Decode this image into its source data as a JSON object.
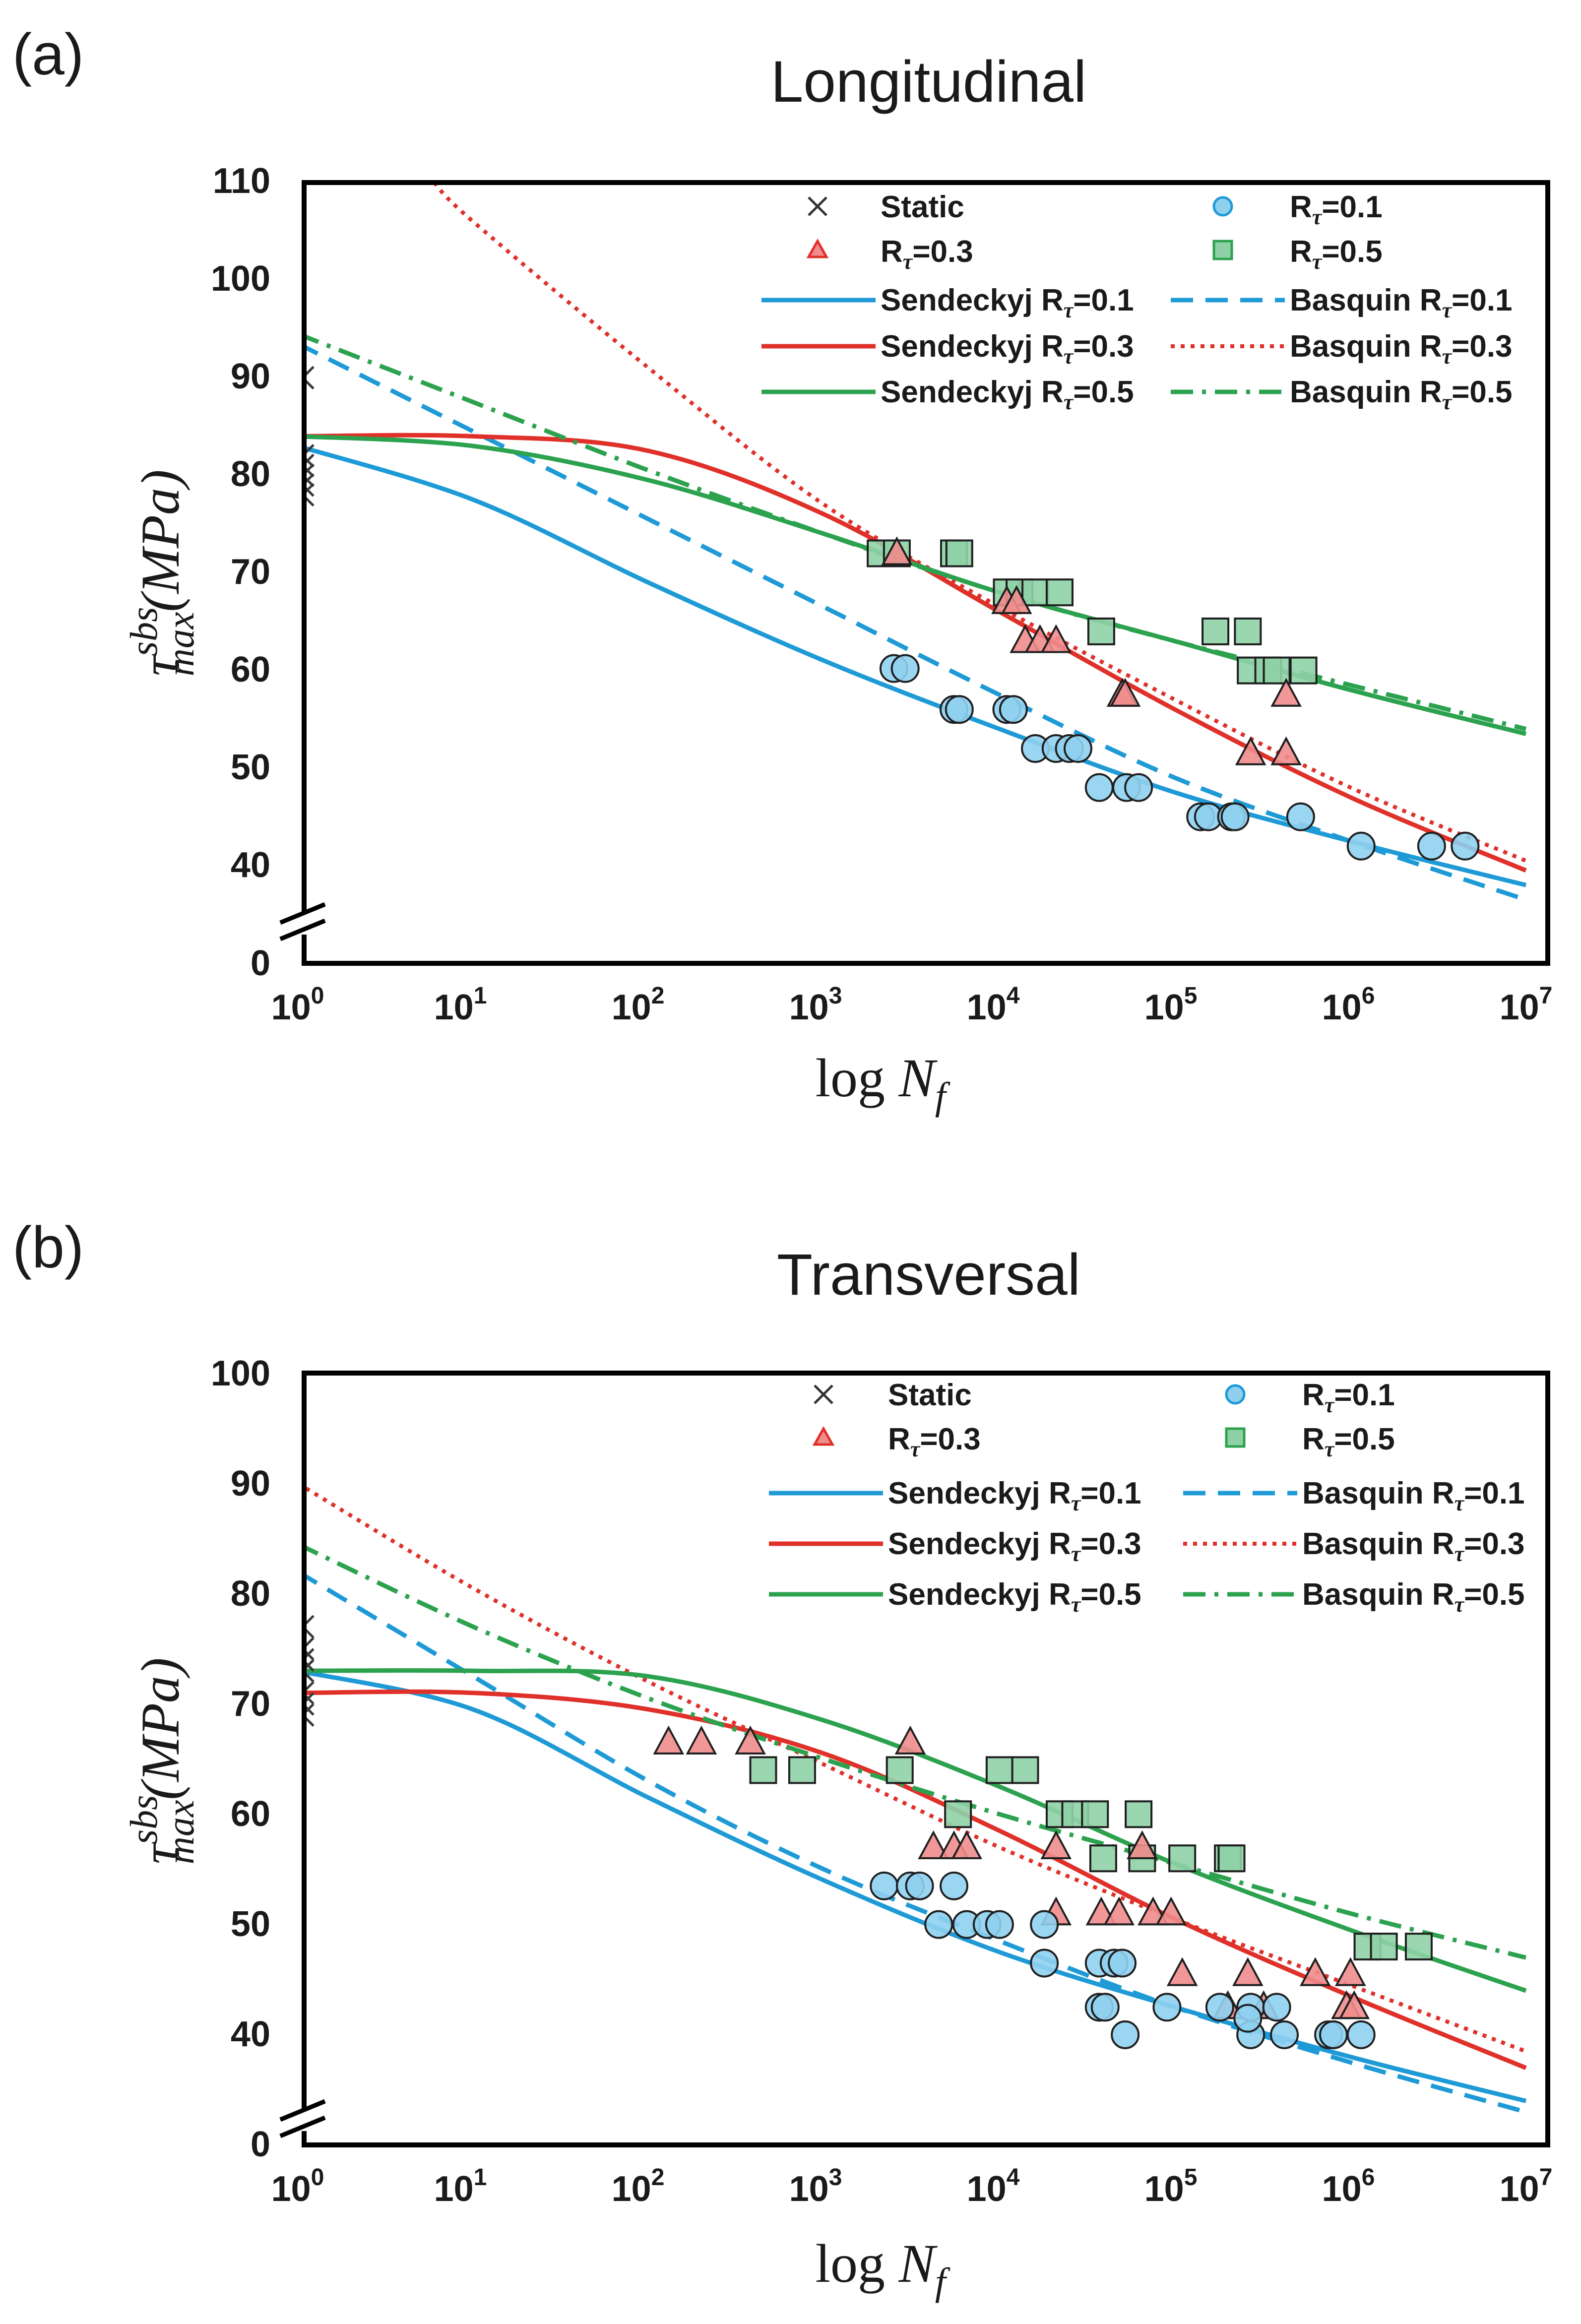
{
  "colors": {
    "r01": "#1e9ad6",
    "r01_fill": "#8fd0ef",
    "r03": "#e0302a",
    "r03_fill": "#f08c8c",
    "r05": "#2ca24f",
    "r05_fill": "#8fd1a6",
    "static": "#3a3a3a",
    "frame": "#000000"
  },
  "chart_data": [
    {
      "panel_label": "(a)",
      "title": "Longitudinal",
      "type": "scatter",
      "xscale": "log",
      "xlim": [
        1,
        10000000
      ],
      "ylim": [
        0,
        110
      ],
      "axis_break": "between 0 and 35",
      "xlabel": {
        "main": "log ",
        "var": "N",
        "sub": "f"
      },
      "ylabel": {
        "main": "τ",
        "sup": "sbs",
        "sub": "max",
        "unit": "(MPa)"
      },
      "xticks": [
        {
          "v": 1,
          "base": "10",
          "exp": "0"
        },
        {
          "v": 10,
          "base": "10",
          "exp": "1"
        },
        {
          "v": 100,
          "base": "10",
          "exp": "2"
        },
        {
          "v": 1000,
          "base": "10",
          "exp": "3"
        },
        {
          "v": 10000,
          "base": "10",
          "exp": "4"
        },
        {
          "v": 100000,
          "base": "10",
          "exp": "5"
        },
        {
          "v": 1000000,
          "base": "10",
          "exp": "6"
        },
        {
          "v": 10000000,
          "base": "10",
          "exp": "7"
        }
      ],
      "yticks": [
        "0",
        "40",
        "50",
        "60",
        "70",
        "80",
        "90",
        "100",
        "110"
      ],
      "legend": {
        "static": "Static",
        "r01": {
          "pre": "R",
          "sub": "τ",
          "post": "=0.1"
        },
        "r03": {
          "pre": "R",
          "sub": "τ",
          "post": "=0.3"
        },
        "r05": {
          "pre": "R",
          "sub": "τ",
          "post": "=0.5"
        },
        "sen01": {
          "pre": "Sendeckyj R",
          "sub": "τ",
          "post": "=0.1"
        },
        "bas01": {
          "pre": "Basquin R",
          "sub": "τ",
          "post": "=0.1"
        },
        "sen03": {
          "pre": "Sendeckyj R",
          "sub": "τ",
          "post": "=0.3"
        },
        "bas03": {
          "pre": "Basquin R",
          "sub": "τ",
          "post": "=0.3"
        },
        "sen05": {
          "pre": "Sendeckyj R",
          "sub": "τ",
          "post": "=0.5"
        },
        "bas05": {
          "pre": "Basquin R",
          "sub": "τ",
          "post": "=0.5"
        }
      },
      "static_points": [
        90,
        82,
        81,
        80,
        80,
        79,
        78
      ],
      "series_points": {
        "r01": [
          [
            2500,
            60.2
          ],
          [
            2900,
            60.2
          ],
          [
            5500,
            56
          ],
          [
            5900,
            56
          ],
          [
            11000,
            56
          ],
          [
            12000,
            56
          ],
          [
            16000,
            52
          ],
          [
            21000,
            52
          ],
          [
            25000,
            52
          ],
          [
            28000,
            52
          ],
          [
            37000,
            48
          ],
          [
            53000,
            48
          ],
          [
            62000,
            48
          ],
          [
            140000,
            45
          ],
          [
            155000,
            45
          ],
          [
            210000,
            45
          ],
          [
            220000,
            45
          ],
          [
            520000,
            45
          ],
          [
            1150000,
            42
          ],
          [
            2900000,
            42
          ],
          [
            4500000,
            42
          ]
        ],
        "r03": [
          [
            2600,
            72
          ],
          [
            11000,
            67
          ],
          [
            12500,
            67
          ],
          [
            14000,
            63
          ],
          [
            17000,
            63
          ],
          [
            21000,
            63
          ],
          [
            50000,
            57.5
          ],
          [
            52000,
            57.5
          ],
          [
            270000,
            51.5
          ],
          [
            430000,
            51.5
          ],
          [
            430000,
            57.5
          ]
        ],
        "r05": [
          [
            2100,
            72
          ],
          [
            2600,
            72
          ],
          [
            5500,
            72
          ],
          [
            5900,
            72
          ],
          [
            11000,
            68
          ],
          [
            13000,
            68
          ],
          [
            16000,
            68
          ],
          [
            22000,
            68
          ],
          [
            38000,
            64
          ],
          [
            170000,
            64
          ],
          [
            260000,
            64
          ],
          [
            270000,
            60
          ],
          [
            340000,
            60
          ],
          [
            380000,
            60
          ],
          [
            540000,
            60
          ]
        ]
      },
      "curves": {
        "sen01": [
          [
            1,
            83
          ],
          [
            10,
            77.5
          ],
          [
            100,
            69
          ],
          [
            1000,
            61
          ],
          [
            10000,
            54
          ],
          [
            100000,
            47.5
          ],
          [
            1000000,
            42.5
          ],
          [
            10000000,
            38
          ]
        ],
        "bas01": [
          [
            1,
            93.5
          ],
          [
            10,
            84.5
          ],
          [
            100,
            75.5
          ],
          [
            1000,
            66.5
          ],
          [
            10000,
            57.5
          ],
          [
            100000,
            49
          ],
          [
            1000000,
            42.5
          ],
          [
            10000000,
            36.5
          ]
        ],
        "sen03": [
          [
            1,
            84
          ],
          [
            10,
            84
          ],
          [
            100,
            82.5
          ],
          [
            1000,
            76
          ],
          [
            10000,
            66
          ],
          [
            100000,
            56
          ],
          [
            1000000,
            47
          ],
          [
            10000000,
            39.5
          ]
        ],
        "bas03": [
          [
            6,
            110
          ],
          [
            10,
            106
          ],
          [
            100,
            91
          ],
          [
            1000,
            77
          ],
          [
            10000,
            66.5
          ],
          [
            100000,
            57
          ],
          [
            1000000,
            48
          ],
          [
            10000000,
            40.5
          ]
        ],
        "sen05": [
          [
            1,
            84
          ],
          [
            10,
            83
          ],
          [
            100,
            79.5
          ],
          [
            1000,
            74
          ],
          [
            10000,
            68
          ],
          [
            100000,
            63
          ],
          [
            1000000,
            58
          ],
          [
            10000000,
            53.5
          ]
        ],
        "bas05": [
          [
            1,
            94.5
          ],
          [
            10,
            87.5
          ],
          [
            100,
            80.5
          ],
          [
            1000,
            74
          ],
          [
            10000,
            68
          ],
          [
            100000,
            63
          ],
          [
            1000000,
            58.5
          ],
          [
            10000000,
            54
          ]
        ]
      }
    },
    {
      "panel_label": "(b)",
      "title": "Transversal",
      "type": "scatter",
      "xscale": "log",
      "xlim": [
        1,
        10000000
      ],
      "ylim": [
        0,
        100
      ],
      "axis_break": "between 0 and 35",
      "xlabel": {
        "main": "log ",
        "var": "N",
        "sub": "f"
      },
      "ylabel": {
        "main": "τ",
        "sup": "sbs",
        "sub": "max",
        "unit": "(MPa)"
      },
      "xticks": [
        {
          "v": 1,
          "base": "10",
          "exp": "0"
        },
        {
          "v": 10,
          "base": "10",
          "exp": "1"
        },
        {
          "v": 100,
          "base": "10",
          "exp": "2"
        },
        {
          "v": 1000,
          "base": "10",
          "exp": "3"
        },
        {
          "v": 10000,
          "base": "10",
          "exp": "4"
        },
        {
          "v": 100000,
          "base": "10",
          "exp": "5"
        },
        {
          "v": 1000000,
          "base": "10",
          "exp": "6"
        },
        {
          "v": 10000000,
          "base": "10",
          "exp": "7"
        }
      ],
      "yticks": [
        "0",
        "40",
        "50",
        "60",
        "70",
        "80",
        "90",
        "100"
      ],
      "legend": {
        "static": "Static",
        "r01": {
          "pre": "R",
          "sub": "τ",
          "post": "=0.1"
        },
        "r03": {
          "pre": "R",
          "sub": "τ",
          "post": "=0.3"
        },
        "r05": {
          "pre": "R",
          "sub": "τ",
          "post": "=0.5"
        },
        "sen01": {
          "pre": "Sendeckyj R",
          "sub": "τ",
          "post": "=0.1"
        },
        "bas01": {
          "pre": "Basquin R",
          "sub": "τ",
          "post": "=0.1"
        },
        "sen03": {
          "pre": "Sendeckyj R",
          "sub": "τ",
          "post": "=0.3"
        },
        "bas03": {
          "pre": "Basquin R",
          "sub": "τ",
          "post": "=0.3"
        },
        "sen05": {
          "pre": "Sendeckyj R",
          "sub": "τ",
          "post": "=0.5"
        },
        "bas05": {
          "pre": "Basquin R",
          "sub": "τ",
          "post": "=0.5"
        }
      },
      "static_points": [
        77,
        75,
        74,
        73,
        71,
        70,
        69
      ],
      "series_points": {
        "r01": [
          [
            2200,
            53.5
          ],
          [
            3100,
            53.5
          ],
          [
            3500,
            53.5
          ],
          [
            5500,
            53.5
          ],
          [
            4500,
            50
          ],
          [
            6500,
            50
          ],
          [
            8500,
            50
          ],
          [
            10000,
            50
          ],
          [
            18000,
            50
          ],
          [
            18000,
            46.5
          ],
          [
            37000,
            46.5
          ],
          [
            45000,
            46.5
          ],
          [
            50000,
            46.5
          ],
          [
            37000,
            42.5
          ],
          [
            40000,
            42.5
          ],
          [
            90000,
            42.5
          ],
          [
            180000,
            42.5
          ],
          [
            270000,
            42.5
          ],
          [
            380000,
            42.5
          ],
          [
            52000,
            40
          ],
          [
            270000,
            40
          ],
          [
            420000,
            40
          ],
          [
            750000,
            40
          ],
          [
            800000,
            40
          ],
          [
            1150000,
            40
          ],
          [
            260000,
            41.5
          ]
        ],
        "r03": [
          [
            130,
            66.5
          ],
          [
            200,
            66.5
          ],
          [
            380,
            66.5
          ],
          [
            3100,
            66.5
          ],
          [
            4200,
            57
          ],
          [
            5500,
            57
          ],
          [
            6500,
            57
          ],
          [
            21000,
            57
          ],
          [
            65000,
            57
          ],
          [
            21000,
            51
          ],
          [
            38000,
            51
          ],
          [
            48000,
            51
          ],
          [
            75000,
            51
          ],
          [
            95000,
            51
          ],
          [
            110000,
            45.5
          ],
          [
            260000,
            45.5
          ],
          [
            630000,
            45.5
          ],
          [
            1000000,
            45.5
          ],
          [
            200000,
            42.5
          ],
          [
            320000,
            42.5
          ],
          [
            950000,
            42.5
          ],
          [
            1050000,
            42.5
          ]
        ],
        "r05": [
          [
            450,
            64
          ],
          [
            750,
            64
          ],
          [
            2700,
            64
          ],
          [
            10000,
            64
          ],
          [
            14000,
            64
          ],
          [
            5800,
            60
          ],
          [
            22000,
            60
          ],
          [
            27000,
            60
          ],
          [
            35000,
            60
          ],
          [
            62000,
            60
          ],
          [
            39000,
            56
          ],
          [
            65000,
            56
          ],
          [
            110000,
            56
          ],
          [
            200000,
            56
          ],
          [
            210000,
            56
          ],
          [
            1250000,
            48
          ],
          [
            1550000,
            48
          ],
          [
            2450000,
            48
          ]
        ]
      },
      "curves": {
        "sen01": [
          [
            1,
            73
          ],
          [
            10,
            69.5
          ],
          [
            100,
            61.5
          ],
          [
            1000,
            54
          ],
          [
            10000,
            47.5
          ],
          [
            100000,
            42.5
          ],
          [
            1000000,
            38
          ],
          [
            10000000,
            34
          ]
        ],
        "bas01": [
          [
            1,
            82
          ],
          [
            10,
            72.5
          ],
          [
            100,
            63
          ],
          [
            1000,
            55
          ],
          [
            10000,
            48.5
          ],
          [
            100000,
            42.5
          ],
          [
            1000000,
            37.5
          ],
          [
            10000000,
            33
          ]
        ],
        "sen03": [
          [
            1,
            71
          ],
          [
            10,
            71
          ],
          [
            100,
            69.5
          ],
          [
            1000,
            65.5
          ],
          [
            10000,
            58.5
          ],
          [
            100000,
            50.5
          ],
          [
            1000000,
            43.5
          ],
          [
            10000000,
            37
          ]
        ],
        "bas03": [
          [
            1,
            90
          ],
          [
            10,
            80.5
          ],
          [
            100,
            72
          ],
          [
            1000,
            64.5
          ],
          [
            10000,
            57
          ],
          [
            100000,
            50.5
          ],
          [
            1000000,
            44.5
          ],
          [
            10000000,
            38.5
          ]
        ],
        "sen05": [
          [
            1,
            73
          ],
          [
            10,
            73
          ],
          [
            100,
            72.5
          ],
          [
            1000,
            68.5
          ],
          [
            10000,
            62.5
          ],
          [
            100000,
            55.5
          ],
          [
            1000000,
            49.5
          ],
          [
            10000000,
            44
          ]
        ],
        "bas05": [
          [
            1,
            84.5
          ],
          [
            10,
            77
          ],
          [
            100,
            70.5
          ],
          [
            1000,
            65
          ],
          [
            10000,
            60
          ],
          [
            100000,
            55.5
          ],
          [
            1000000,
            51
          ],
          [
            10000000,
            47
          ]
        ]
      }
    }
  ]
}
